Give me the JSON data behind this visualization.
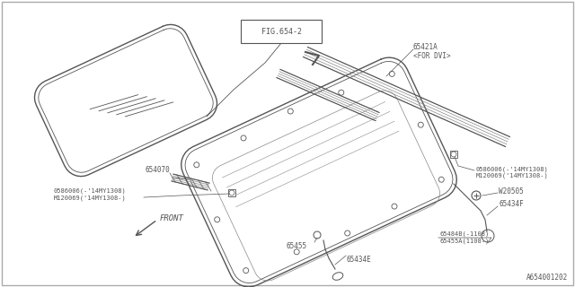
{
  "bg_color": "#ffffff",
  "border_color": "#cccccc",
  "line_color": "#888888",
  "dark_line": "#555555",
  "text_color": "#555555",
  "title_text": "A654001202",
  "fig654_label": "FIG.654-2",
  "labels": {
    "65421A": "65421A\n<FOR DVI>",
    "0586006_right": "0586006(-'14MY1308)\nM120069('14MY1308-)",
    "W20505": "W20505",
    "65434F": "65434F",
    "654070": "654070",
    "0586006_left": "0586006(-'14MY1308)\nM120069('14MY1308-)",
    "65455": "65455",
    "65434E": "65434E",
    "65484B": "65484B(-1108)\n65455A(1108-)",
    "FRONT": "FRONT"
  }
}
